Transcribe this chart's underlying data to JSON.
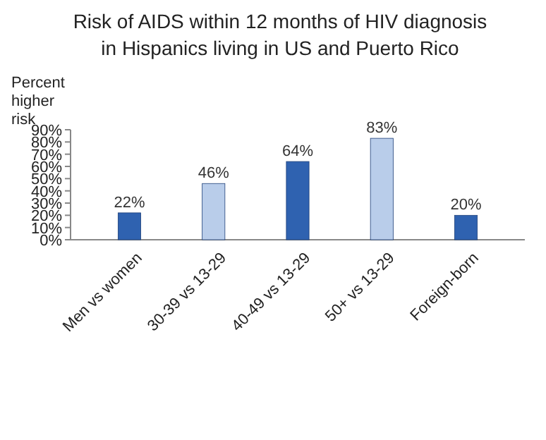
{
  "chart_data": {
    "type": "bar",
    "title": "Risk of AIDS within 12 months of HIV diagnosis in Hispanics living in US and Puerto Rico",
    "ylabel": "Percent higher risk",
    "categories": [
      "Men vs women",
      "30-39 vs 13-29",
      "40-49 vs 13-29",
      "50+ vs 13-29",
      "Foreign-born"
    ],
    "values": [
      22,
      46,
      64,
      83,
      20
    ],
    "colors": [
      "#2f62b0",
      "#b9cdea",
      "#2f62b0",
      "#b9cdea",
      "#2f62b0"
    ],
    "value_labels": [
      "22%",
      "46%",
      "64%",
      "83%",
      "20%"
    ],
    "ylim": [
      0,
      90
    ],
    "yticks": [
      {
        "value": 0,
        "label": "0%"
      },
      {
        "value": 10,
        "label": "10%"
      },
      {
        "value": 20,
        "label": "20%"
      },
      {
        "value": 30,
        "label": "30%"
      },
      {
        "value": 40,
        "label": "40%"
      },
      {
        "value": 50,
        "label": "50%"
      },
      {
        "value": 60,
        "label": "60%"
      },
      {
        "value": 70,
        "label": "70%"
      },
      {
        "value": 80,
        "label": "80%"
      },
      {
        "value": 90,
        "label": "90%"
      }
    ]
  }
}
